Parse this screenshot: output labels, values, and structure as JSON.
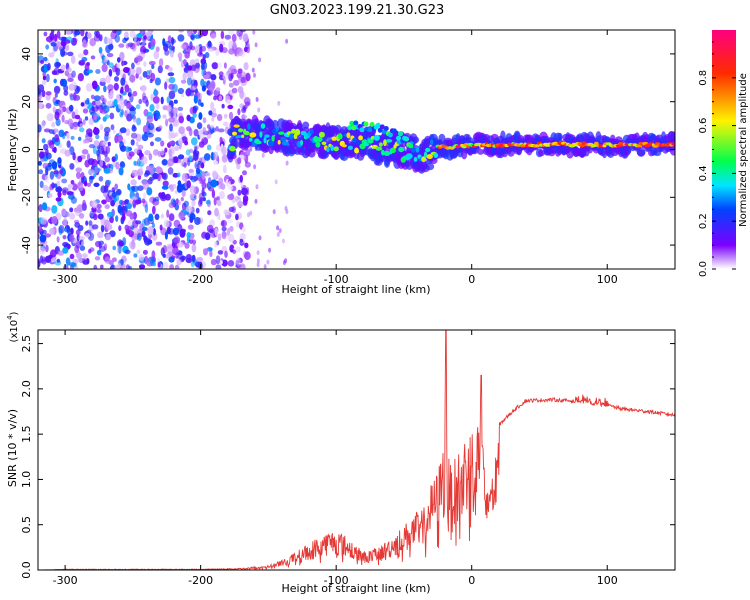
{
  "figure": {
    "title": "GN03.2023.199.21.30.G23"
  },
  "chart_data": [
    {
      "type": "heatmap",
      "xlabel": "Height of straight line (km)",
      "ylabel": "Frequency (Hz)",
      "xlim": [
        -320,
        150
      ],
      "ylim": [
        -50,
        50
      ],
      "xticks": [
        -300,
        -200,
        -100,
        0,
        100
      ],
      "yticks": [
        -40,
        -20,
        0,
        20,
        40
      ],
      "colorbar": {
        "label": "Normalized spectral amplitude",
        "range": [
          0.0,
          1.0
        ],
        "ticks": [
          "0.0",
          "0.2",
          "0.4",
          "0.6",
          "0.8"
        ],
        "tick_values": [
          0.0,
          0.2,
          0.4,
          0.6,
          0.8
        ],
        "colormap": "rainbow-white",
        "colors": [
          "#ffffff",
          "#7a00ff",
          "#0044ff",
          "#00e5ff",
          "#00ff4c",
          "#fff200",
          "#ff2a00",
          "#ff007f"
        ]
      },
      "regions": [
        {
          "name": "noise",
          "x": [
            -320,
            -165
          ],
          "y": [
            -50,
            50
          ],
          "amplitude": [
            0.0,
            0.3
          ]
        },
        {
          "name": "main-line",
          "points": [
            [
              -175,
              7
            ],
            [
              -150,
              6
            ],
            [
              -120,
              4
            ],
            [
              -100,
              3
            ],
            [
              -80,
              3
            ],
            [
              -60,
              0
            ],
            [
              -45,
              -1
            ],
            [
              -35,
              -3
            ],
            [
              -25,
              1
            ],
            [
              -10,
              1
            ],
            [
              0,
              2
            ],
            [
              50,
              2
            ],
            [
              100,
              2
            ],
            [
              150,
              2
            ]
          ],
          "amplitude_peak": 0.95
        },
        {
          "name": "upper-branch",
          "points": [
            [
              -90,
              10
            ],
            [
              -70,
              9
            ],
            [
              -55,
              6
            ],
            [
              -45,
              3
            ]
          ],
          "amplitude_peak": 0.5
        }
      ]
    },
    {
      "type": "line",
      "xlabel": "Height of straight line (km)",
      "ylabel": "SNR (10 * v/v)",
      "yexponent": "(x10",
      "yexponent_power": "4",
      "xlim": [
        -320,
        150
      ],
      "ylim": [
        0,
        2.65
      ],
      "xticks": [
        -300,
        -200,
        -100,
        0,
        100
      ],
      "yticks": [
        "0.0",
        "0.5",
        "1.0",
        "1.5",
        "2.0",
        "2.5"
      ],
      "ytick_values": [
        0.0,
        0.5,
        1.0,
        1.5,
        2.0,
        2.5
      ],
      "color": "#e53935",
      "series": [
        {
          "x": [
            -320,
            -300,
            -250,
            -200,
            -170,
            -150,
            -135,
            -120,
            -110,
            -100,
            -90,
            -80,
            -70,
            -60,
            -50,
            -40,
            -35,
            -30,
            -25,
            -20,
            -19,
            -18,
            -15,
            -10,
            -5,
            0,
            5,
            7,
            10,
            15,
            20,
            30,
            40,
            60,
            80,
            90,
            100,
            110,
            130,
            150
          ],
          "y": [
            0.0,
            0.01,
            0.01,
            0.01,
            0.02,
            0.05,
            0.15,
            0.3,
            0.4,
            0.45,
            0.35,
            0.2,
            0.25,
            0.35,
            0.5,
            0.65,
            0.7,
            0.95,
            1.1,
            1.5,
            2.65,
            1.3,
            1.15,
            1.3,
            1.5,
            1.6,
            1.9,
            2.15,
            0.8,
            1.35,
            1.6,
            1.75,
            1.87,
            1.88,
            1.86,
            1.84,
            1.82,
            1.78,
            1.75,
            1.71
          ]
        }
      ]
    }
  ]
}
